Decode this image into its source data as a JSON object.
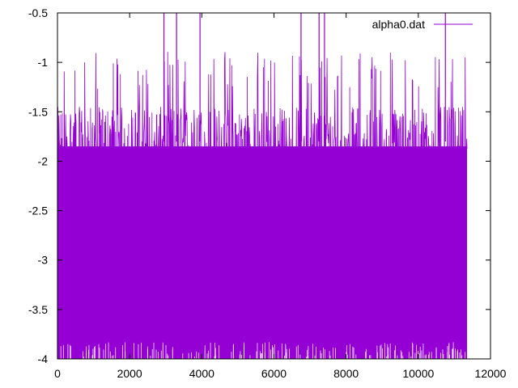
{
  "chart_data": {
    "type": "line",
    "title": "",
    "xlabel": "",
    "ylabel": "",
    "xlim": [
      0,
      12000
    ],
    "ylim": [
      -4,
      -0.5
    ],
    "x_ticks": [
      {
        "value": 0,
        "label": "0"
      },
      {
        "value": 2000,
        "label": "2000"
      },
      {
        "value": 4000,
        "label": "4000"
      },
      {
        "value": 6000,
        "label": "6000"
      },
      {
        "value": 8000,
        "label": "8000"
      },
      {
        "value": 10000,
        "label": "10000"
      },
      {
        "value": 12000,
        "label": "12000"
      }
    ],
    "y_ticks": [
      {
        "value": -0.5,
        "label": "-0.5"
      },
      {
        "value": -1,
        "label": "-1"
      },
      {
        "value": -1.5,
        "label": "-1.5"
      },
      {
        "value": -2,
        "label": "-2"
      },
      {
        "value": -2.5,
        "label": "-2.5"
      },
      {
        "value": -3,
        "label": "-3"
      },
      {
        "value": -3.5,
        "label": "-3.5"
      },
      {
        "value": -4,
        "label": "-4"
      }
    ],
    "grid": false,
    "legend_position": "top-right",
    "series": [
      {
        "name": "alpha0.dat",
        "color": "#9400d3",
        "x_range": [
          0,
          11350
        ],
        "points": 11350,
        "band_min": -4.0,
        "band_max": -1.8,
        "occasional_peaks_to": -1.2,
        "spikes": [
          {
            "x": 2950,
            "y": -0.5
          },
          {
            "x": 3300,
            "y": -0.5
          },
          {
            "x": 3950,
            "y": -0.5
          },
          {
            "x": 6750,
            "y": -0.5
          },
          {
            "x": 7250,
            "y": -0.5
          },
          {
            "x": 7400,
            "y": -0.5
          },
          {
            "x": 10750,
            "y": -0.5
          }
        ]
      }
    ]
  }
}
